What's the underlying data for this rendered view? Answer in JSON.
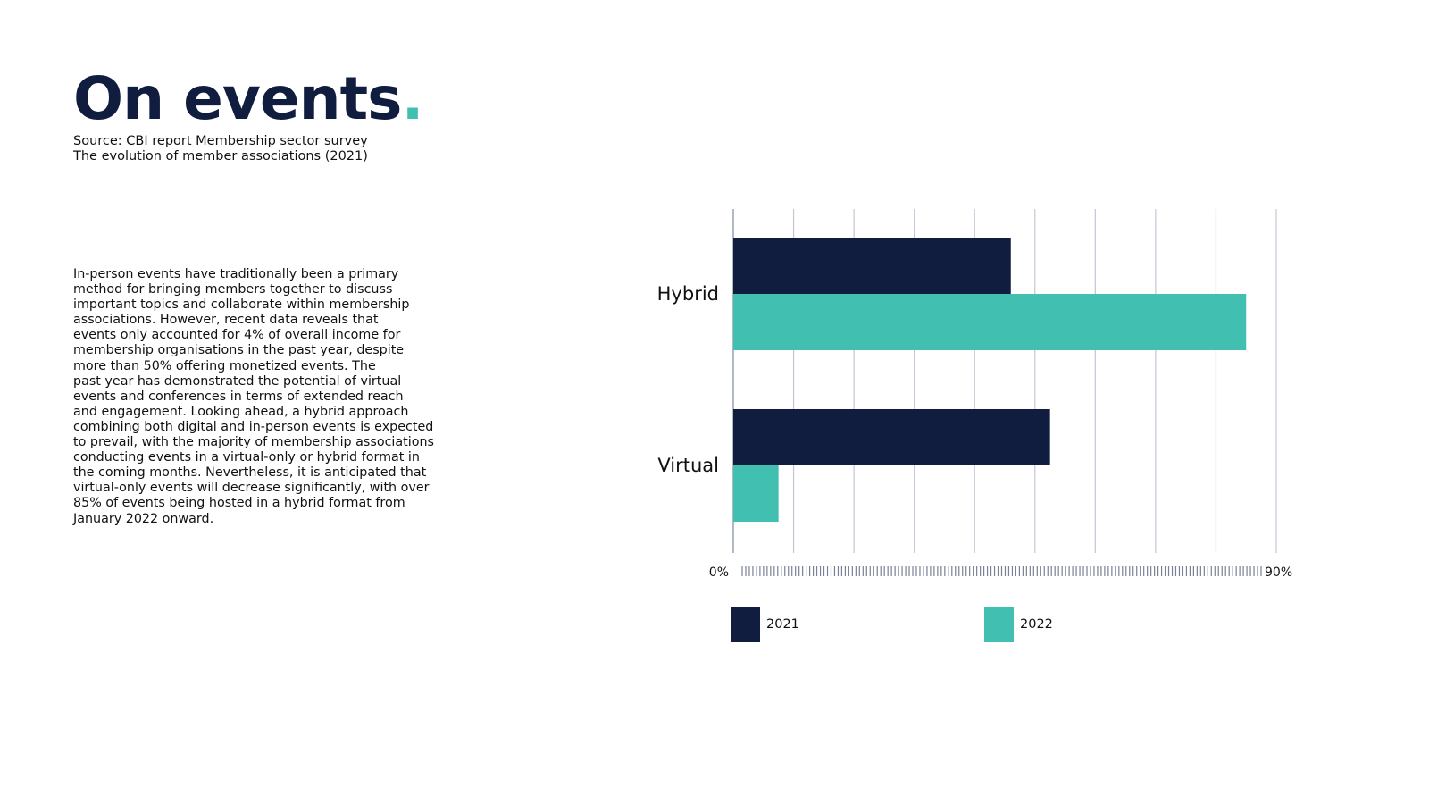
{
  "header": {
    "title": "On events",
    "title_dot": ".",
    "source_line1": "Source: CBI report Membership sector survey",
    "source_line2": "The evolution of member associations (2021)"
  },
  "body": {
    "lines": [
      "In-person events have traditionally been a primary",
      "method for bringing members together to discuss",
      "important topics and collaborate within membership",
      "associations. However, recent data reveals that",
      "events only accounted for 4% of overall income for",
      "membership organisations in the past year, despite",
      "more than 50% offering monetized events. The",
      "past year has demonstrated the potential of virtual",
      "events and conferences in terms of extended reach",
      "and engagement. Looking ahead, a hybrid approach",
      "combining both digital and in-person events is expected",
      "to prevail, with the majority of membership associations",
      "conducting events in a virtual-only or hybrid format in",
      "the coming months. Nevertheless, it is anticipated that",
      "virtual-only events will decrease significantly, with over",
      "85% of events being hosted in a hybrid format from",
      "January 2022 onward."
    ]
  },
  "colors": {
    "navy": "#111d3f",
    "teal": "#41bfb0",
    "grid": "#c3c7d3"
  },
  "chart_data": {
    "type": "bar",
    "orientation": "horizontal",
    "categories": [
      "Hybrid",
      "Virtual"
    ],
    "series": [
      {
        "name": "2021",
        "values": [
          46,
          52.5
        ],
        "color": "#111d3f"
      },
      {
        "name": "2022",
        "values": [
          85,
          7.5
        ],
        "color": "#41bfb0"
      }
    ],
    "xlim": [
      0,
      90
    ],
    "x_min_label": "0%",
    "x_max_label": "90%",
    "grid": true,
    "legend_position": "bottom"
  }
}
